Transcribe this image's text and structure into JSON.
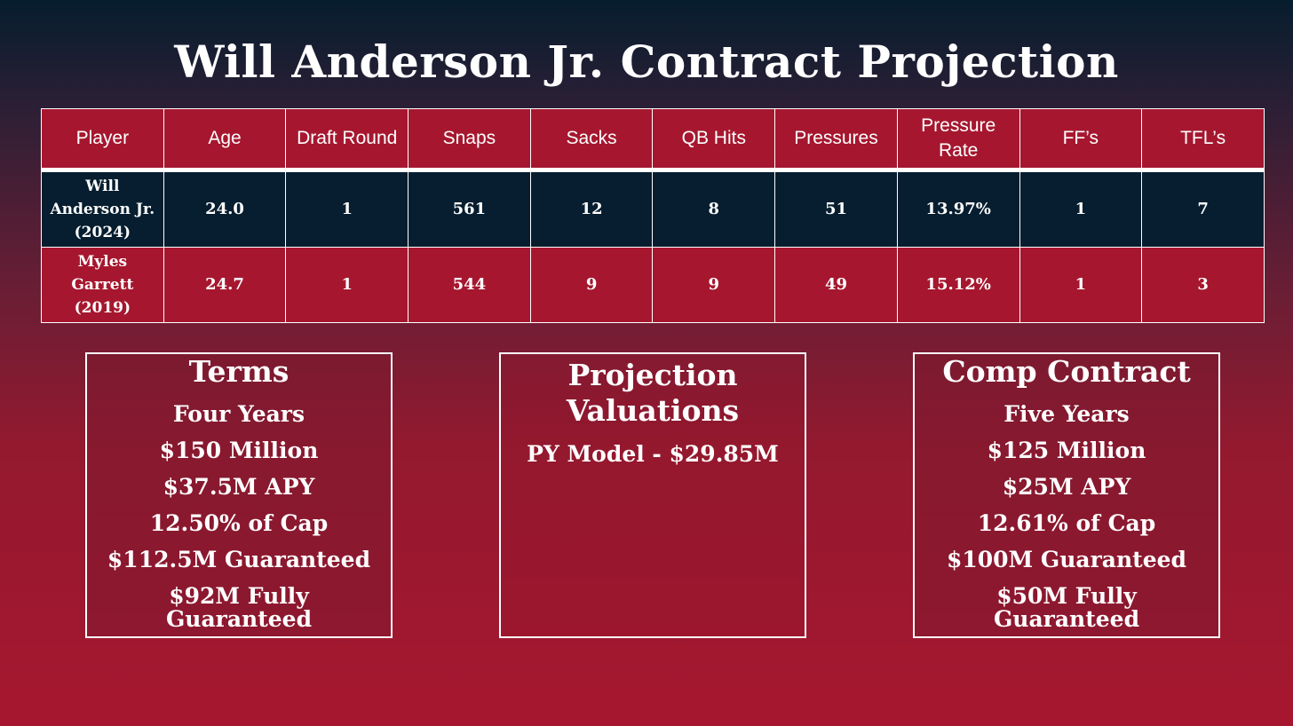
{
  "title": "Will Anderson Jr. Contract Projection",
  "table": {
    "headers": [
      "Player",
      "Age",
      "Draft Round",
      "Snaps",
      "Sacks",
      "QB Hits",
      "Pressures",
      "Pressure Rate",
      "FF’s",
      "TFL’s"
    ],
    "rows": [
      {
        "name": "Will Anderson Jr. (2024)",
        "age": "24.0",
        "draft_round": "1",
        "snaps": "561",
        "sacks": "12",
        "qb_hits": "8",
        "pressures": "51",
        "pressure_rate": "13.97%",
        "ffs": "1",
        "tfls": "7"
      },
      {
        "name": "Myles Garrett (2019)",
        "age": "24.7",
        "draft_round": "1",
        "snaps": "544",
        "sacks": "9",
        "qb_hits": "9",
        "pressures": "49",
        "pressure_rate": "15.12%",
        "ffs": "1",
        "tfls": "3"
      }
    ]
  },
  "terms": {
    "title": "Terms",
    "lines": [
      "Four Years",
      "$150 Million",
      "$37.5M APY",
      "12.50% of Cap",
      "$112.5M Guaranteed",
      "$92M Fully Guaranteed"
    ]
  },
  "projection": {
    "title": "Projection Valuations",
    "lines": [
      "PY Model - $29.85M"
    ]
  },
  "comp": {
    "title": "Comp Contract",
    "lines": [
      "Five Years",
      "$125 Million",
      "$25M APY",
      "12.61% of Cap",
      "$100M Guaranteed",
      "$50M Fully Guaranteed"
    ]
  },
  "colors": {
    "navy": "#061e2f",
    "red": "#a6172f"
  }
}
